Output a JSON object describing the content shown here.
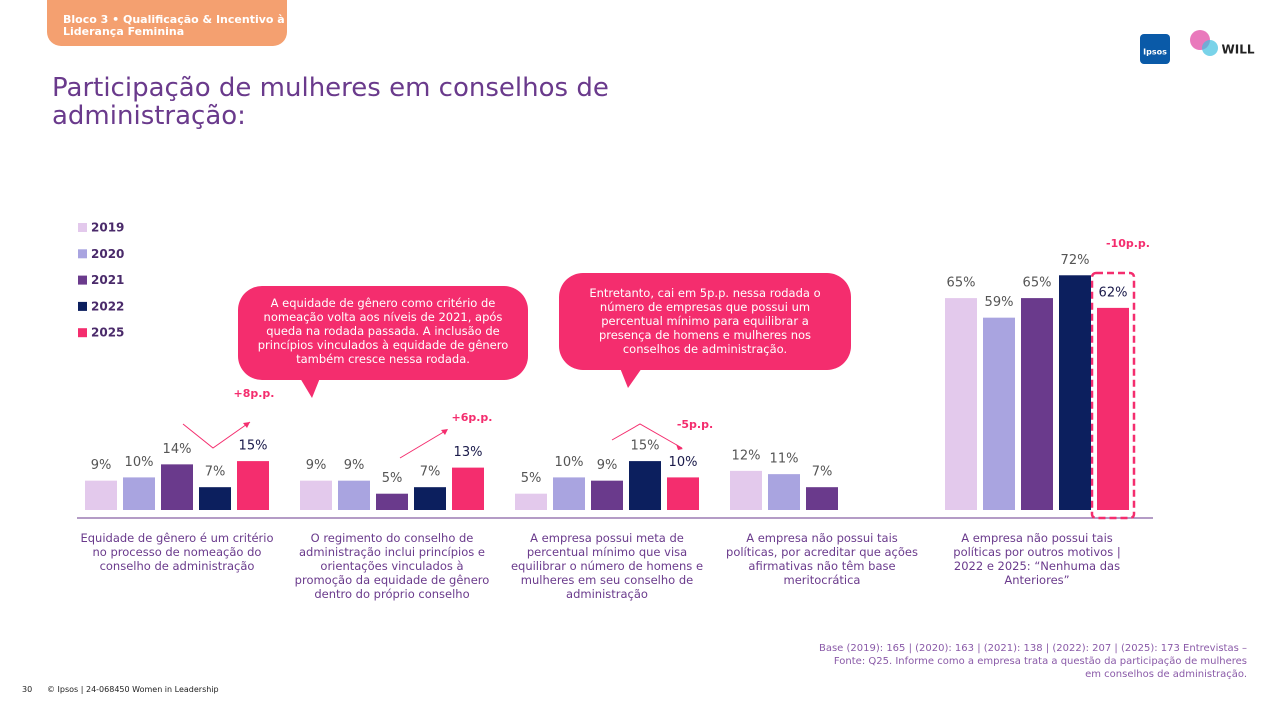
{
  "header": {
    "section": "Bloco 3 • Qualificação & Incentivo à Liderança Feminina",
    "logos": [
      "Ipsos",
      "WILL"
    ]
  },
  "chart_data": {
    "type": "bar",
    "title": "Participação de mulheres em conselhos de administração:",
    "categories": [
      "Equidade de gênero é um critério no processo de nomeação do conselho de administração",
      "O regimento do conselho de administração inclui princípios e orientações vinculados à promoção da equidade de gênero dentro do próprio conselho",
      "A empresa possui meta de percentual mínimo que visa equilibrar o número de homens e mulheres em seu conselho de administração",
      "A empresa não possui tais políticas, por acreditar que ações afirmativas não têm base meritocrática",
      "A empresa não possui tais políticas por outros motivos | 2022 e 2025: “Nenhuma das Anteriores”"
    ],
    "series": [
      {
        "name": "2019",
        "color": "#e3c9ec",
        "values": [
          9,
          9,
          5,
          12,
          65
        ],
        "value_labels": [
          "9%",
          "9%",
          "5%",
          "12%",
          "65%"
        ]
      },
      {
        "name": "2020",
        "color": "#a9a4e0",
        "values": [
          10,
          9,
          10,
          11,
          59
        ],
        "value_labels": [
          "10%",
          "9%",
          "10%",
          "11%",
          "59%"
        ]
      },
      {
        "name": "2021",
        "color": "#6a3a8c",
        "values": [
          14,
          5,
          9,
          7,
          65
        ],
        "value_labels": [
          "14%",
          "5%",
          "9%",
          "7%",
          "65%"
        ]
      },
      {
        "name": "2022",
        "color": "#0c1f5e",
        "values": [
          7,
          7,
          15,
          null,
          72
        ],
        "value_labels": [
          "7%",
          "7%",
          "15%",
          null,
          "72%"
        ]
      },
      {
        "name": "2025",
        "color": "#f42d6e",
        "values": [
          15,
          13,
          10,
          null,
          62
        ],
        "value_labels": [
          "15%",
          "13%",
          "10%",
          null,
          "62%"
        ]
      }
    ],
    "annotations": [
      "+8p.p.",
      "+6p.p.",
      "-5p.p.",
      "-10p.p."
    ],
    "callouts": [
      "A equidade de gênero como critério de nomeação volta aos níveis de 2021, após queda na rodada passada. A inclusão de princípios vinculados à equidade de gênero também cresce nessa rodada.",
      "Entretanto, cai em 5p.p. nessa rodada o número de empresas que possui um percentual mínimo para equilibrar a presença de homens e mulheres nos conselhos de administração."
    ],
    "source": "Base (2019): 165 | (2020): 163 | (2021): 138 | (2022): 207 | (2025): 173 Entrevistas – Fonte: Q25. Informe como a empresa trata a questão da participação de mulheres em conselhos de administração."
  },
  "footer": {
    "page": "30",
    "copyright": "© Ipsos | 24-068450 Women in Leadership"
  }
}
